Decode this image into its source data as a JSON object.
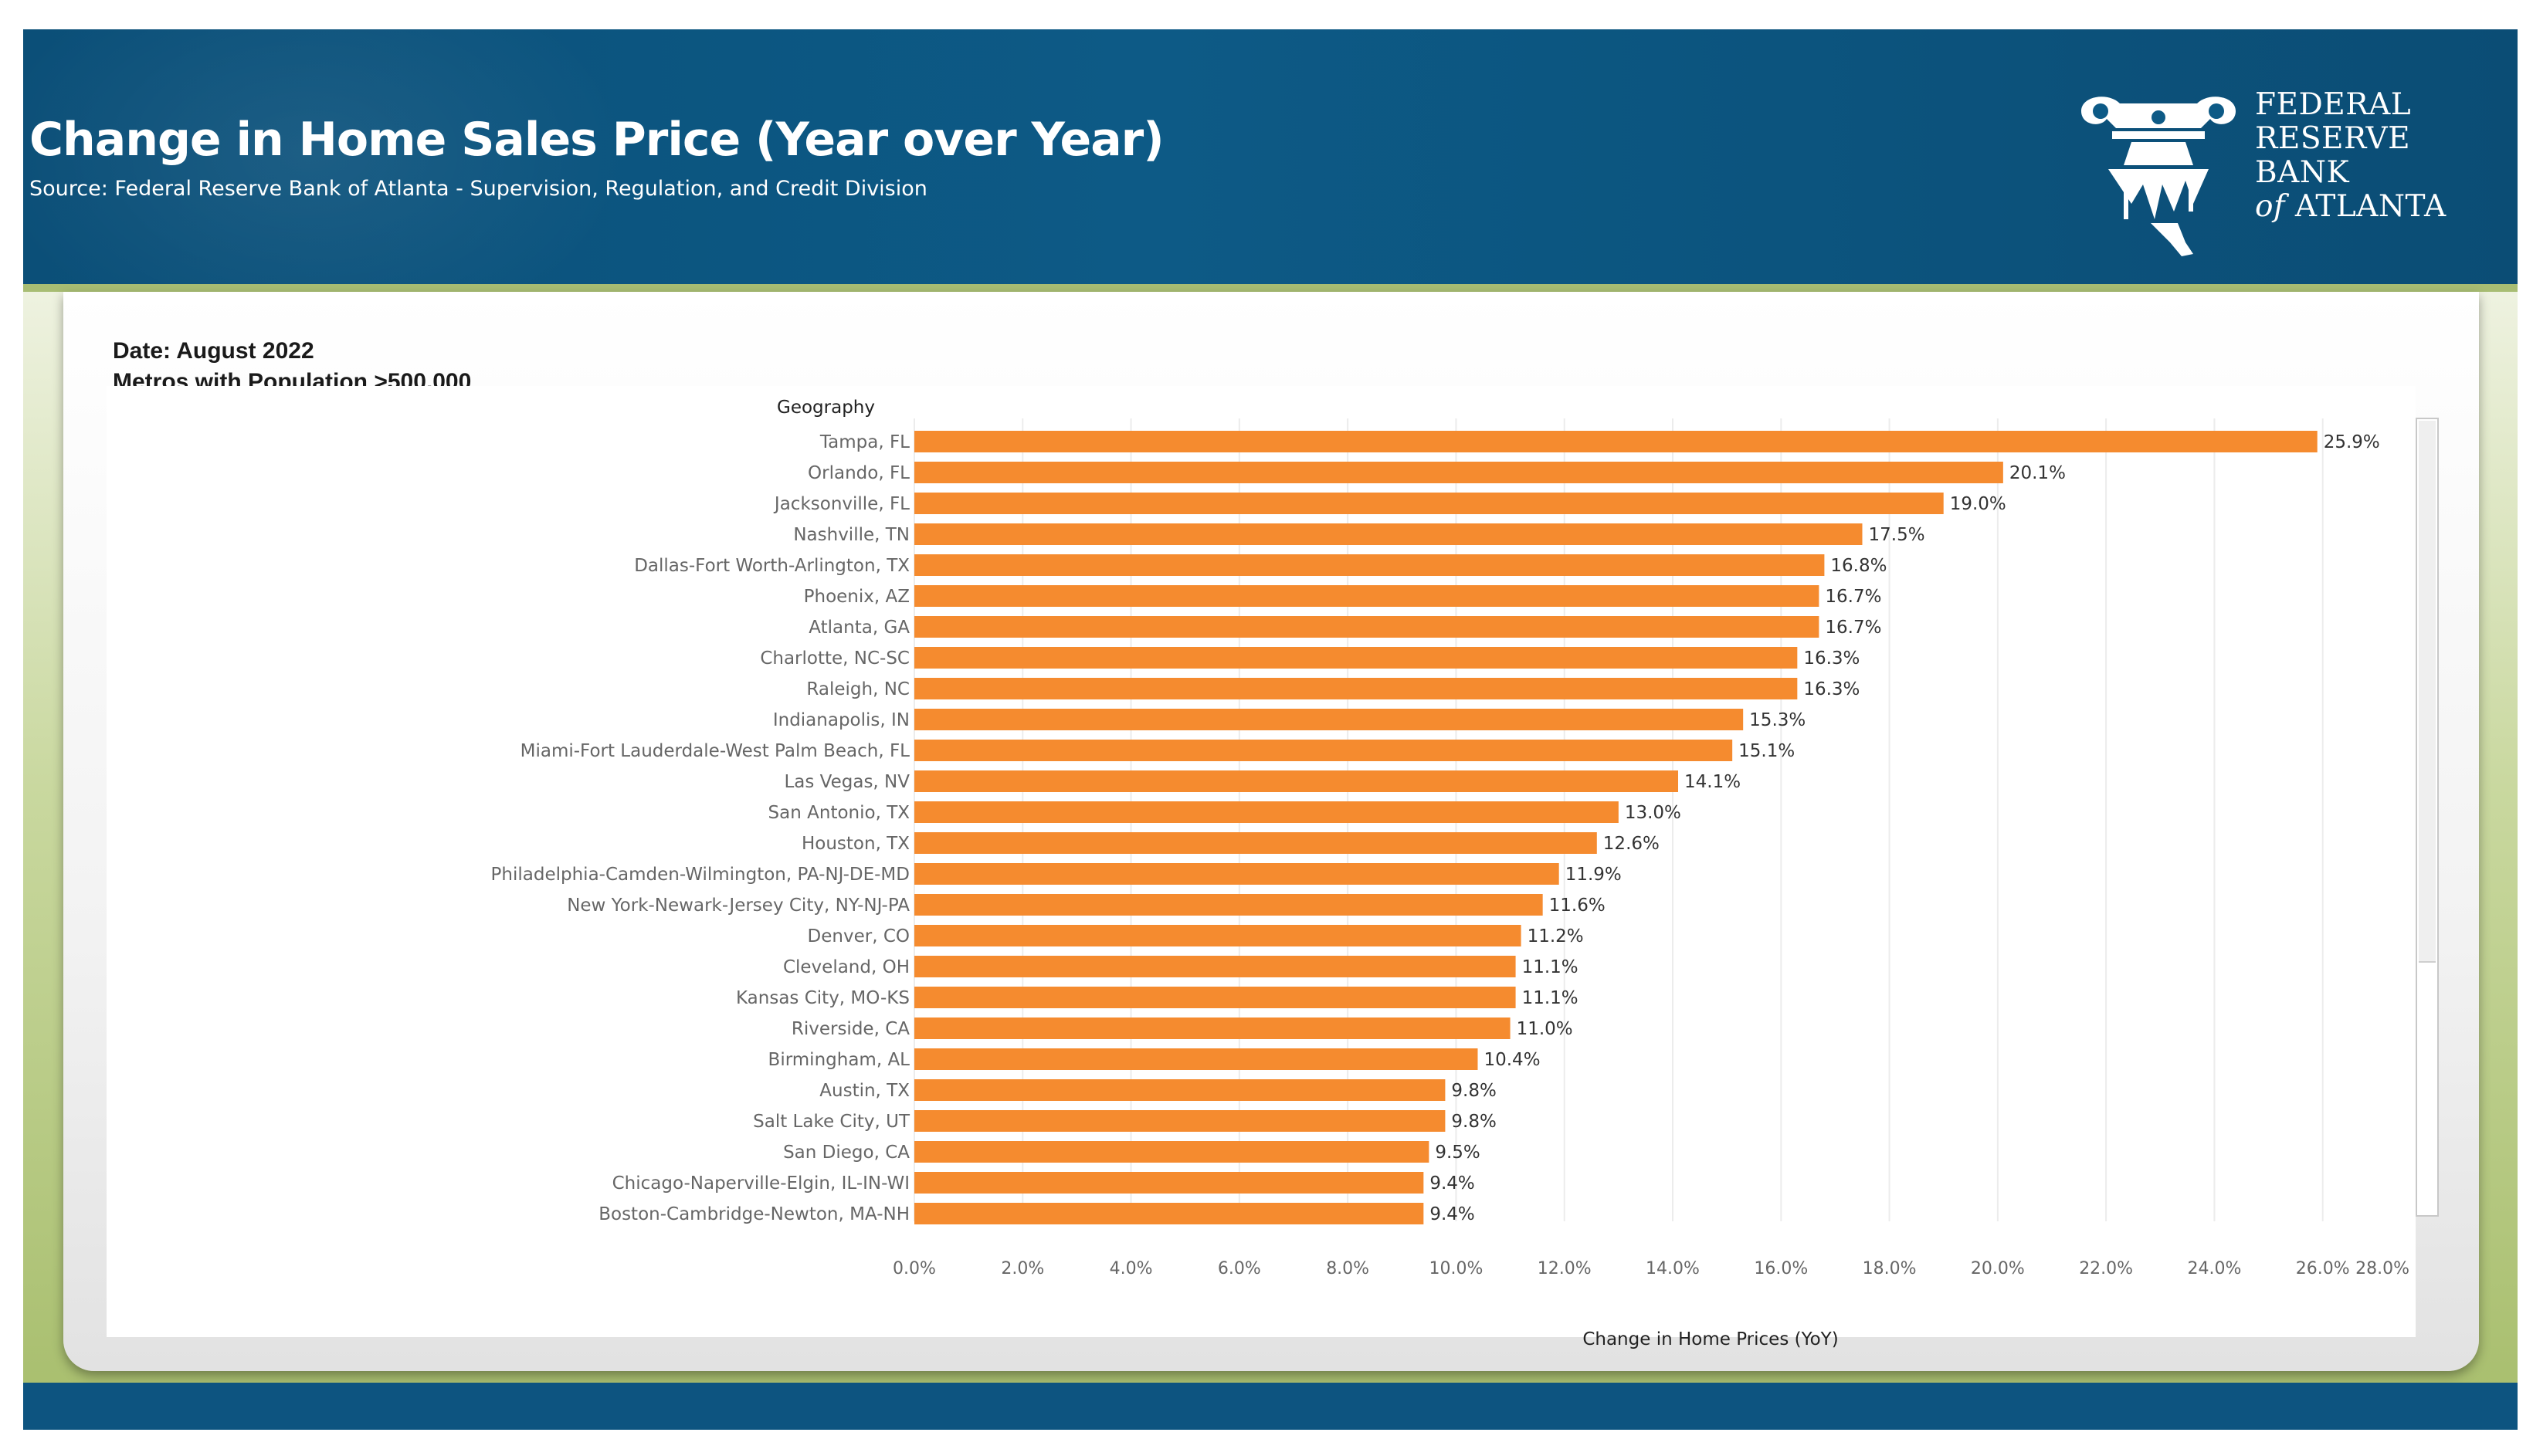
{
  "header": {
    "title": "Change in Home Sales Price (Year over Year)",
    "subtitle": "Source: Federal Reserve Bank of Atlanta - Supervision, Regulation, and Credit Division",
    "logo_lines": [
      "FEDERAL",
      "RESERVE",
      "BANK"
    ],
    "logo_last_prefix": "of",
    "logo_last_word": "ATLANTA",
    "colors": {
      "header_blue": "#0d5a86",
      "accent_green": "#a8bd73",
      "bar_orange": "#f58b2f"
    }
  },
  "meta": {
    "date": "Date: August 2022",
    "population": "Metros with Population >500,000"
  },
  "chart_data": {
    "type": "bar",
    "orientation": "horizontal",
    "column_header": "Geography",
    "xlabel": "Change in Home Prices (YoY)",
    "xlim": [
      0,
      28
    ],
    "xticks": [
      "0.0%",
      "2.0%",
      "4.0%",
      "6.0%",
      "8.0%",
      "10.0%",
      "12.0%",
      "14.0%",
      "16.0%",
      "18.0%",
      "20.0%",
      "22.0%",
      "24.0%",
      "26.0%",
      "28.0%"
    ],
    "grid": "vertical",
    "categories": [
      "Tampa, FL",
      "Orlando, FL",
      "Jacksonville, FL",
      "Nashville, TN",
      "Dallas-Fort Worth-Arlington, TX",
      "Phoenix, AZ",
      "Atlanta, GA",
      "Charlotte, NC-SC",
      "Raleigh, NC",
      "Indianapolis, IN",
      "Miami-Fort Lauderdale-West Palm Beach, FL",
      "Las Vegas, NV",
      "San Antonio, TX",
      "Houston, TX",
      "Philadelphia-Camden-Wilmington, PA-NJ-DE-MD",
      "New York-Newark-Jersey City, NY-NJ-PA",
      "Denver, CO",
      "Cleveland, OH",
      "Kansas City, MO-KS",
      "Riverside, CA",
      "Birmingham, AL",
      "Austin, TX",
      "Salt Lake City, UT",
      "San Diego, CA",
      "Chicago-Naperville-Elgin, IL-IN-WI",
      "Boston-Cambridge-Newton, MA-NH"
    ],
    "values": [
      25.9,
      20.1,
      19.0,
      17.5,
      16.8,
      16.7,
      16.7,
      16.3,
      16.3,
      15.3,
      15.1,
      14.1,
      13.0,
      12.6,
      11.9,
      11.6,
      11.2,
      11.1,
      11.1,
      11.0,
      10.4,
      9.8,
      9.8,
      9.5,
      9.4,
      9.4
    ],
    "value_labels": [
      "25.9%",
      "20.1%",
      "19.0%",
      "17.5%",
      "16.8%",
      "16.7%",
      "16.7%",
      "16.3%",
      "16.3%",
      "15.3%",
      "15.1%",
      "14.1%",
      "13.0%",
      "12.6%",
      "11.9%",
      "11.6%",
      "11.2%",
      "11.1%",
      "11.1%",
      "11.0%",
      "10.4%",
      "9.8%",
      "9.8%",
      "9.5%",
      "9.4%",
      "9.4%"
    ]
  }
}
